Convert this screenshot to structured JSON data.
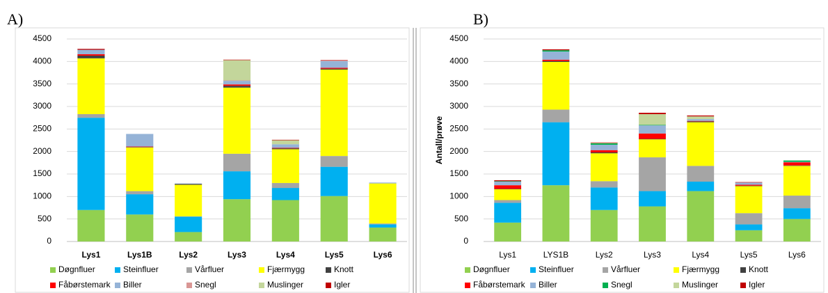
{
  "chart_data": [
    {
      "type": "bar",
      "stacked": true,
      "title": "A)",
      "grid": true,
      "categories": [
        "Lys1",
        "Lys1B",
        "Lys2",
        "Lys3",
        "Lys4",
        "Lys5",
        "Lys6"
      ],
      "ylim": [
        0,
        4500
      ],
      "yticks": [
        0,
        500,
        1000,
        1500,
        2000,
        2500,
        3000,
        3500,
        4000,
        4500
      ],
      "series": [
        {
          "name": "Døgnfluer",
          "color": "#92d050",
          "values": [
            700,
            600,
            210,
            940,
            920,
            1010,
            310
          ]
        },
        {
          "name": "Steinfluer",
          "color": "#00b0f0",
          "values": [
            2050,
            450,
            340,
            620,
            270,
            650,
            70
          ]
        },
        {
          "name": "Vårfluer",
          "color": "#a5a5a5",
          "values": [
            80,
            70,
            10,
            390,
            110,
            240,
            20
          ]
        },
        {
          "name": "Fjærmygg",
          "color": "#ffff00",
          "values": [
            1240,
            970,
            700,
            1470,
            750,
            1920,
            890
          ]
        },
        {
          "name": "Knott",
          "color": "#404040",
          "values": [
            60,
            10,
            20,
            40,
            20,
            20,
            0
          ]
        },
        {
          "name": "Fåbørstemark",
          "color": "#ff0000",
          "values": [
            30,
            10,
            0,
            30,
            10,
            20,
            0
          ]
        },
        {
          "name": "Biller",
          "color": "#95b3d7",
          "values": [
            100,
            280,
            10,
            80,
            80,
            150,
            20
          ]
        },
        {
          "name": "Snegl",
          "color": "#d99694",
          "values": [
            0,
            0,
            0,
            10,
            0,
            10,
            0
          ]
        },
        {
          "name": "Muslinger",
          "color": "#c3d69b",
          "values": [
            0,
            0,
            0,
            450,
            90,
            0,
            0
          ]
        },
        {
          "name": "Igler",
          "color": "#c00000",
          "values": [
            20,
            0,
            0,
            10,
            10,
            10,
            0
          ]
        }
      ]
    },
    {
      "type": "bar",
      "stacked": true,
      "title": "B)",
      "ylabel": "Antall/prøve",
      "grid": true,
      "categories": [
        "Lys1",
        "LYS1B",
        "Lys2",
        "Lys3",
        "Lys4",
        "Lys5",
        "Lys6"
      ],
      "ylim": [
        0,
        4500
      ],
      "yticks": [
        0,
        500,
        1000,
        1500,
        2000,
        2500,
        3000,
        3500,
        4000,
        4500
      ],
      "series": [
        {
          "name": "Døgnfluer",
          "color": "#92d050",
          "values": [
            420,
            1250,
            700,
            780,
            1120,
            250,
            500
          ]
        },
        {
          "name": "Steinfluer",
          "color": "#00b0f0",
          "values": [
            440,
            1400,
            500,
            340,
            210,
            130,
            240
          ]
        },
        {
          "name": "Vårfluer",
          "color": "#a5a5a5",
          "values": [
            60,
            280,
            140,
            750,
            350,
            250,
            280
          ]
        },
        {
          "name": "Fjærmygg",
          "color": "#ffff00",
          "values": [
            240,
            1060,
            620,
            400,
            970,
            600,
            660
          ]
        },
        {
          "name": "Knott",
          "color": "#404040",
          "values": [
            10,
            20,
            20,
            10,
            20,
            10,
            10
          ]
        },
        {
          "name": "Fåbørstemark",
          "color": "#ff0000",
          "values": [
            80,
            30,
            50,
            120,
            10,
            20,
            70
          ]
        },
        {
          "name": "Biller",
          "color": "#95b3d7",
          "values": [
            80,
            180,
            120,
            180,
            40,
            50,
            10
          ]
        },
        {
          "name": "Snegl",
          "color": "#00b050",
          "values": [
            10,
            30,
            30,
            10,
            0,
            0,
            30
          ]
        },
        {
          "name": "Muslinger",
          "color": "#c3d69b",
          "values": [
            0,
            0,
            10,
            240,
            60,
            0,
            0
          ]
        },
        {
          "name": "Igler",
          "color": "#c00000",
          "values": [
            20,
            20,
            10,
            30,
            20,
            10,
            0
          ]
        }
      ]
    }
  ]
}
